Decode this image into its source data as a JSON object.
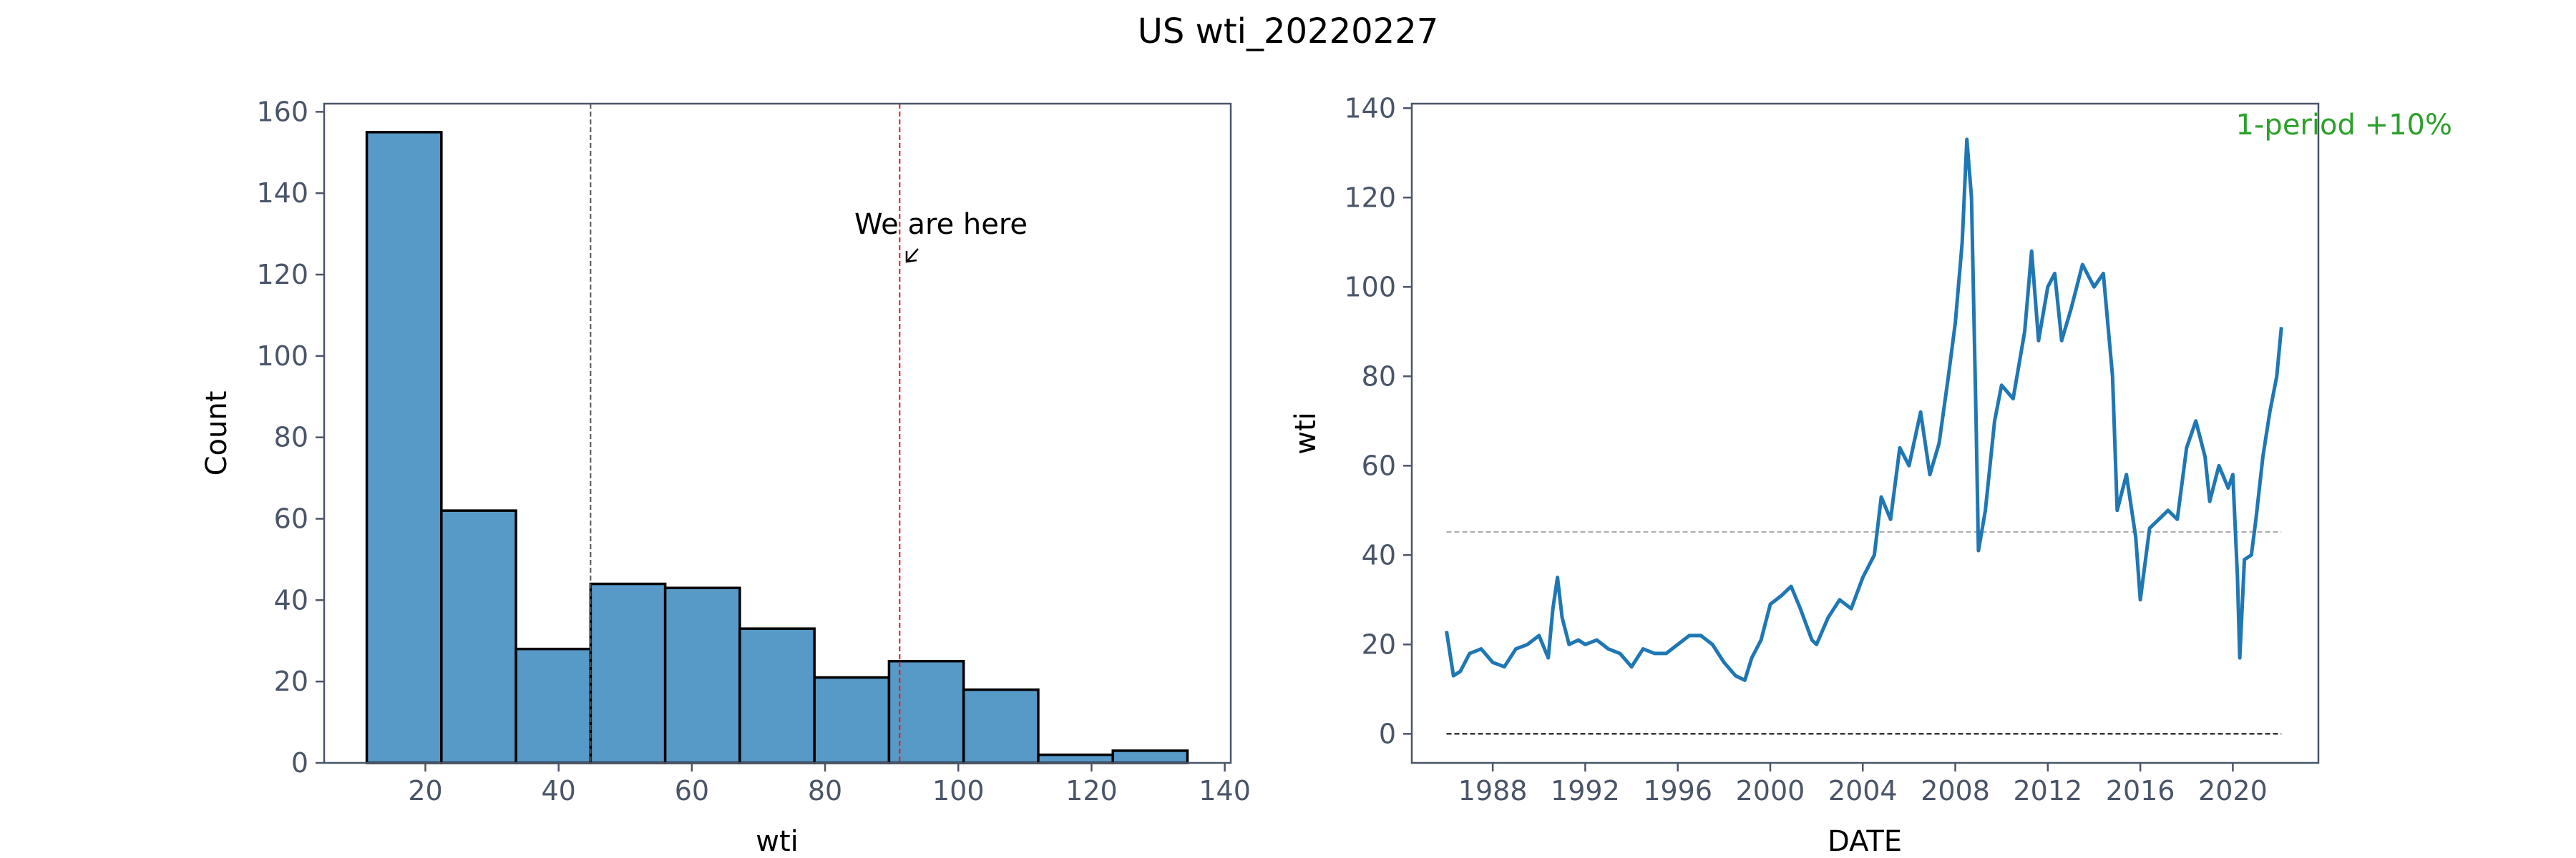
{
  "figure": {
    "title": "US wti_20220227"
  },
  "chart_data": [
    {
      "type": "bar",
      "subtype": "histogram",
      "xlabel": "wti",
      "ylabel": "Count",
      "xlim": [
        4.8,
        140.9
      ],
      "ylim": [
        0,
        162
      ],
      "xticks": [
        20,
        40,
        60,
        80,
        100,
        120,
        140
      ],
      "yticks": [
        0,
        20,
        40,
        60,
        80,
        100,
        120,
        140,
        160
      ],
      "bin_edges": [
        11.2,
        22.4,
        33.6,
        44.8,
        56.0,
        67.2,
        78.4,
        89.6,
        100.8,
        112.0,
        123.2,
        134.4
      ],
      "values": [
        155,
        62,
        28,
        44,
        43,
        33,
        21,
        25,
        18,
        2,
        3
      ],
      "bar_color": "#5799c7",
      "vlines": [
        {
          "x": 44.8,
          "color": "#555555",
          "style": "dashed"
        },
        {
          "x": 91.2,
          "color": "#e41a1c",
          "style": "dashed"
        }
      ],
      "annotation": {
        "text": "We are here",
        "point_x": 91.2,
        "point_y": 123
      }
    },
    {
      "type": "line",
      "xlabel": "DATE",
      "ylabel": "wti",
      "xlim": [
        1984.5,
        2023.7
      ],
      "ylim": [
        -6.5,
        141
      ],
      "xticks": [
        1988,
        1992,
        1996,
        2000,
        2004,
        2008,
        2012,
        2016,
        2020
      ],
      "yticks": [
        0,
        20,
        40,
        60,
        80,
        100,
        120,
        140
      ],
      "line_color": "#1f77b4",
      "series": [
        {
          "x": [
            1986.0,
            1986.3,
            1986.6,
            1987.0,
            1987.5,
            1988.0,
            1988.5,
            1989.0,
            1989.5,
            1990.0,
            1990.4,
            1990.6,
            1990.8,
            1991.0,
            1991.3,
            1991.7,
            1992.0,
            1992.5,
            1993.0,
            1993.5,
            1994.0,
            1994.5,
            1995.0,
            1995.5,
            1996.0,
            1996.5,
            1997.0,
            1997.5,
            1998.0,
            1998.5,
            1998.9,
            1999.2,
            1999.6,
            2000.0,
            2000.5,
            2000.9,
            2001.3,
            2001.8,
            2002.0,
            2002.5,
            2003.0,
            2003.5,
            2004.0,
            2004.5,
            2004.8,
            2005.2,
            2005.6,
            2006.0,
            2006.5,
            2006.9,
            2007.3,
            2007.7,
            2008.0,
            2008.3,
            2008.5,
            2008.7,
            2008.9,
            2009.0,
            2009.3,
            2009.7,
            2010.0,
            2010.5,
            2011.0,
            2011.3,
            2011.6,
            2012.0,
            2012.3,
            2012.6,
            2013.0,
            2013.5,
            2014.0,
            2014.4,
            2014.8,
            2015.0,
            2015.4,
            2015.8,
            2016.0,
            2016.4,
            2016.8,
            2017.2,
            2017.6,
            2018.0,
            2018.4,
            2018.8,
            2019.0,
            2019.4,
            2019.8,
            2020.0,
            2020.2,
            2020.3,
            2020.5,
            2020.8,
            2021.0,
            2021.3,
            2021.6,
            2021.9,
            2022.1
          ],
          "y": [
            23,
            13,
            14,
            18,
            19,
            16,
            15,
            19,
            20,
            22,
            17,
            28,
            35,
            26,
            20,
            21,
            20,
            21,
            19,
            18,
            15,
            19,
            18,
            18,
            20,
            22,
            22,
            20,
            16,
            13,
            12,
            17,
            21,
            29,
            31,
            33,
            28,
            21,
            20,
            26,
            30,
            28,
            35,
            40,
            53,
            48,
            64,
            60,
            72,
            58,
            65,
            80,
            92,
            110,
            133,
            120,
            70,
            41,
            50,
            70,
            78,
            75,
            90,
            108,
            88,
            100,
            103,
            88,
            95,
            105,
            100,
            103,
            80,
            50,
            58,
            44,
            30,
            46,
            48,
            50,
            48,
            64,
            70,
            62,
            52,
            60,
            55,
            58,
            35,
            17,
            39,
            40,
            48,
            62,
            72,
            80,
            91
          ]
        }
      ],
      "hlines": [
        {
          "y": 45.2,
          "color": "#aaaaaa",
          "style": "dashed"
        },
        {
          "y": 0,
          "color": "#000000",
          "style": "dashed"
        }
      ],
      "annotation": {
        "text": "1-period +10%",
        "color": "#2ca02c"
      }
    }
  ]
}
